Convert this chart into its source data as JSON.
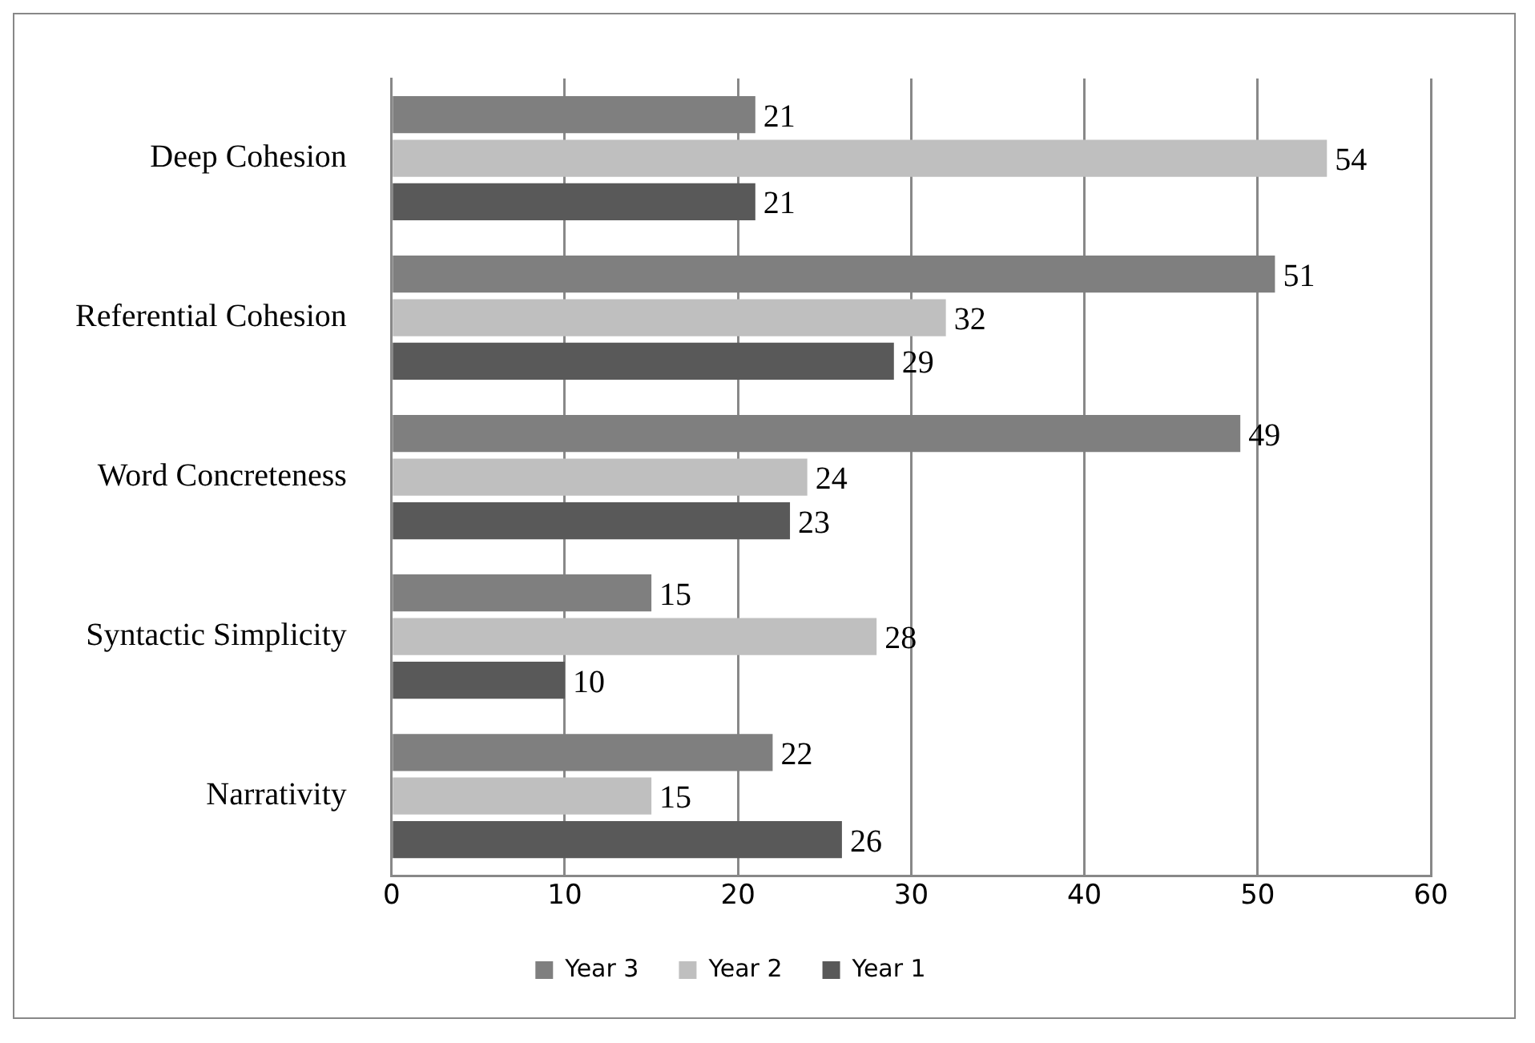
{
  "chart_data": {
    "type": "bar",
    "orientation": "horizontal",
    "categories": [
      "Deep Cohesion",
      "Referential Cohesion",
      "Word Concreteness",
      "Syntactic Simplicity",
      "Narrativity"
    ],
    "series": [
      {
        "name": "Year 3",
        "color": "#7f7f7f",
        "values": [
          21,
          51,
          49,
          15,
          22
        ]
      },
      {
        "name": "Year 2",
        "color": "#bfbfbf",
        "values": [
          54,
          32,
          24,
          28,
          15
        ]
      },
      {
        "name": "Year 1",
        "color": "#595959",
        "values": [
          21,
          29,
          23,
          10,
          26
        ]
      }
    ],
    "xlim": [
      0,
      60
    ],
    "xticks": [
      0,
      10,
      20,
      30,
      40,
      50,
      60
    ],
    "grid": "x",
    "legend": "bottom",
    "data_labels": true
  }
}
